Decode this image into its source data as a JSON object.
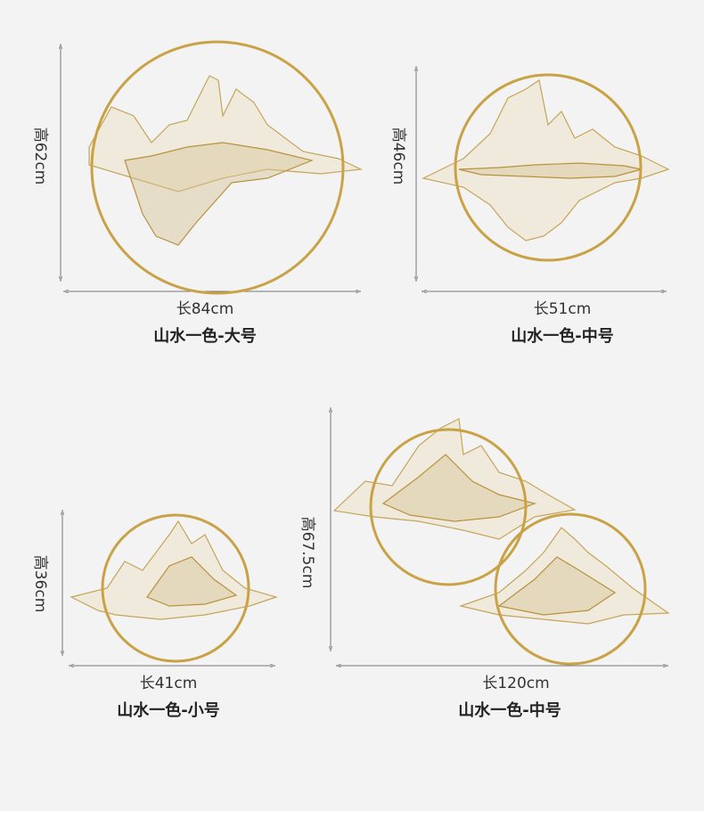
{
  "products": [
    {
      "height": "高62cm",
      "width": "长84cm",
      "name": "山水一色-大号"
    },
    {
      "height": "高46cm",
      "width": "长51cm",
      "name": "山水一色-中号"
    },
    {
      "height": "高36cm",
      "width": "长41cm",
      "name": "山水一色-小号"
    },
    {
      "height": "高67.5cm",
      "width": "长120cm",
      "name": "山水一色-中号"
    }
  ]
}
